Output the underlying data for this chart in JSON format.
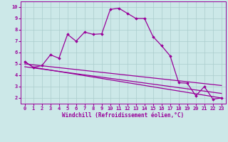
{
  "background_color": "#cce8e8",
  "grid_color": "#aacccc",
  "line_color": "#990099",
  "xlabel": "Windchill (Refroidissement éolien,°C)",
  "xlim": [
    -0.5,
    23.5
  ],
  "ylim": [
    1.5,
    10.5
  ],
  "yticks": [
    2,
    3,
    4,
    5,
    6,
    7,
    8,
    9,
    10
  ],
  "xticks": [
    0,
    1,
    2,
    3,
    4,
    5,
    6,
    7,
    8,
    9,
    10,
    11,
    12,
    13,
    14,
    15,
    16,
    17,
    18,
    19,
    20,
    21,
    22,
    23
  ],
  "series_main": {
    "x": [
      0,
      1,
      2,
      3,
      4,
      5,
      6,
      7,
      8,
      9,
      10,
      11,
      12,
      13,
      14,
      15,
      16,
      17,
      18,
      19,
      20,
      21,
      22,
      23
    ],
    "y": [
      5.2,
      4.7,
      4.85,
      5.8,
      5.5,
      7.6,
      7.0,
      7.8,
      7.6,
      7.65,
      9.8,
      9.9,
      9.45,
      9.0,
      9.0,
      7.4,
      6.6,
      5.7,
      3.35,
      3.3,
      2.2,
      3.0,
      1.9,
      2.0
    ]
  },
  "series_lines": [
    {
      "x": [
        0,
        1,
        23
      ],
      "y": [
        5.2,
        4.7,
        2.0
      ]
    },
    {
      "x": [
        0,
        23
      ],
      "y": [
        5.0,
        3.1
      ]
    },
    {
      "x": [
        0,
        23
      ],
      "y": [
        4.75,
        2.4
      ]
    }
  ],
  "marker": "D",
  "markersize": 1.8,
  "linewidth": 0.9,
  "tick_fontsize": 5.0,
  "xlabel_fontsize": 5.5
}
